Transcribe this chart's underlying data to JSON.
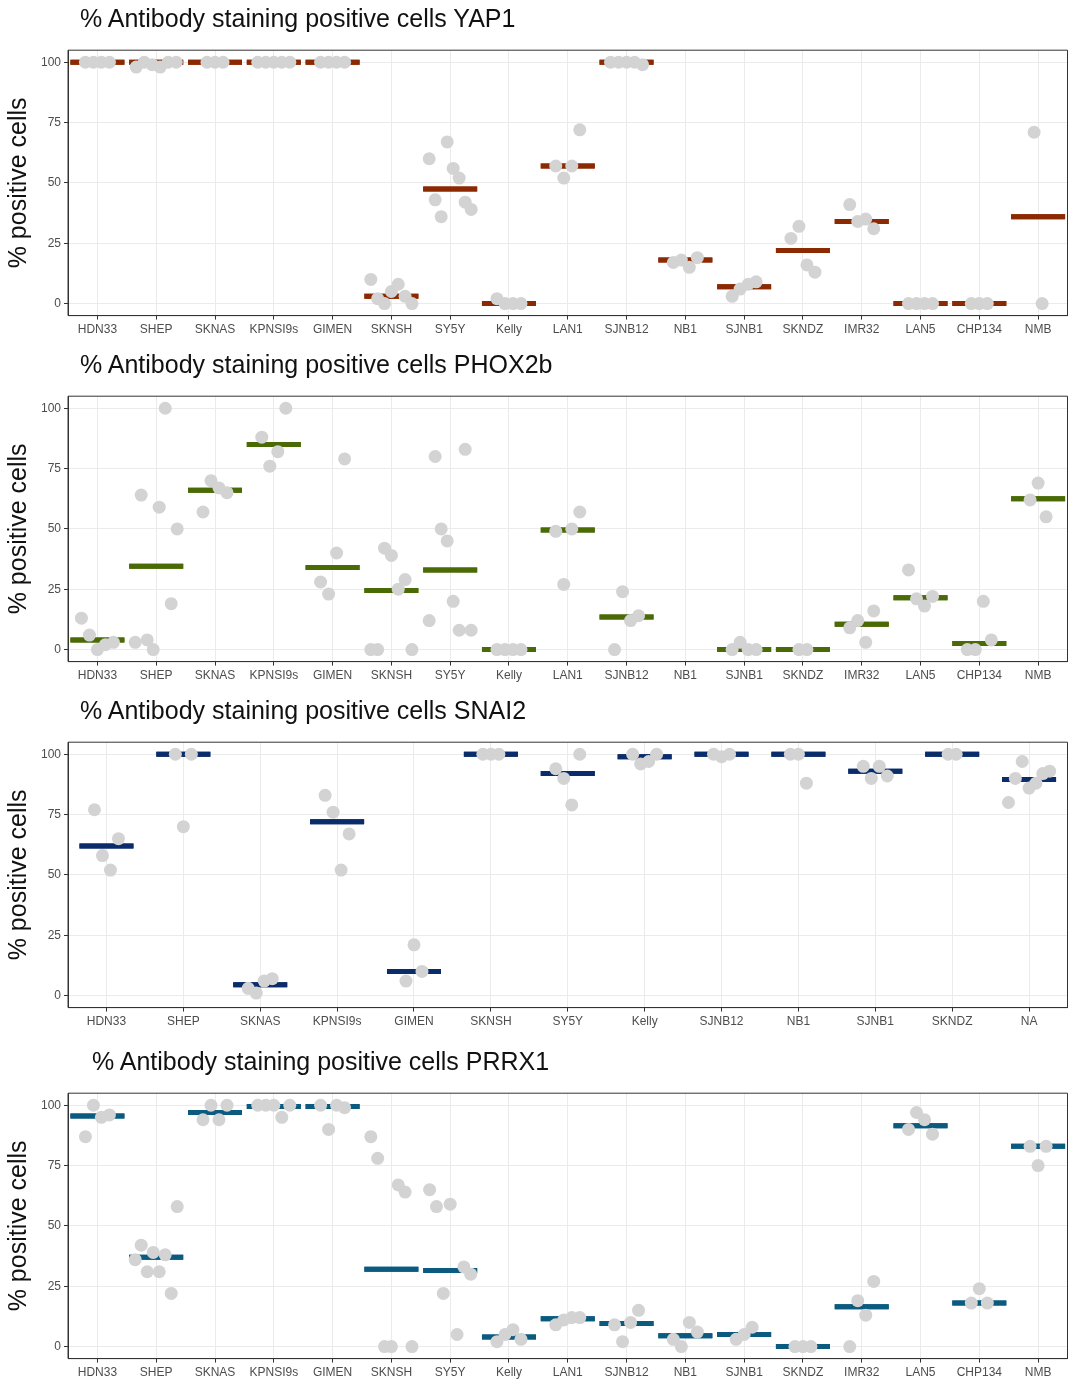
{
  "chart_data": [
    {
      "type": "scatter",
      "title": "% Antibody staining positive cells YAP1",
      "ylabel": "% positive cells",
      "categories": [
        "HDN33",
        "SHEP",
        "SKNAS",
        "KPNSI9s",
        "GIMEN",
        "SKNSH",
        "SY5Y",
        "Kelly",
        "LAN1",
        "SJNB12",
        "NB1",
        "SJNB1",
        "SKNDZ",
        "IMR32",
        "LAN5",
        "CHP134",
        "NMB"
      ],
      "ylim": [
        -5,
        105
      ],
      "yticks": [
        0,
        25,
        50,
        75,
        100
      ],
      "grid": true,
      "legend": false,
      "series": [
        {
          "marker": "circle",
          "color": "#d3d3d3",
          "x": [
            "HDN33",
            "HDN33",
            "HDN33",
            "HDN33",
            "SHEP",
            "SHEP",
            "SHEP",
            "SHEP",
            "SHEP",
            "SHEP",
            "SKNAS",
            "SKNAS",
            "SKNAS",
            "KPNSI9s",
            "KPNSI9s",
            "KPNSI9s",
            "KPNSI9s",
            "KPNSI9s",
            "GIMEN",
            "GIMEN",
            "GIMEN",
            "GIMEN",
            "SKNSH",
            "SKNSH",
            "SKNSH",
            "SKNSH",
            "SKNSH",
            "SKNSH",
            "SKNSH",
            "SY5Y",
            "SY5Y",
            "SY5Y",
            "SY5Y",
            "SY5Y",
            "SY5Y",
            "SY5Y",
            "SY5Y",
            "Kelly",
            "Kelly",
            "Kelly",
            "Kelly",
            "LAN1",
            "LAN1",
            "LAN1",
            "LAN1",
            "SJNB12",
            "SJNB12",
            "SJNB12",
            "SJNB12",
            "SJNB12",
            "NB1",
            "NB1",
            "NB1",
            "NB1",
            "SJNB1",
            "SJNB1",
            "SJNB1",
            "SJNB1",
            "SKNDZ",
            "SKNDZ",
            "SKNDZ",
            "SKNDZ",
            "IMR32",
            "IMR32",
            "IMR32",
            "IMR32",
            "LAN5",
            "LAN5",
            "LAN5",
            "LAN5",
            "CHP134",
            "CHP134",
            "CHP134",
            "NMB",
            "NMB"
          ],
          "values": [
            100,
            100,
            100,
            100,
            98,
            100,
            99,
            98,
            100,
            100,
            100,
            100,
            100,
            100,
            100,
            100,
            100,
            100,
            100,
            100,
            100,
            100,
            10,
            2,
            0,
            5,
            8,
            3,
            0,
            60,
            43,
            36,
            67,
            56,
            52,
            42,
            39,
            2,
            0,
            0,
            0,
            57,
            52,
            57,
            72,
            100,
            100,
            100,
            100,
            99,
            17,
            18,
            15,
            19,
            3,
            6,
            8,
            9,
            27,
            32,
            16,
            13,
            41,
            34,
            35,
            31,
            0,
            0,
            0,
            0,
            0,
            0,
            0,
            71,
            0
          ]
        },
        {
          "type": "box",
          "color": "#8b2a02",
          "boxes": [
            {
              "low": 100,
              "q1": 100,
              "median": 100,
              "q3": 100,
              "high": 100
            },
            {
              "low": 100,
              "q1": 100,
              "median": 100,
              "q3": 100,
              "high": 100
            },
            {
              "low": 100,
              "q1": 100,
              "median": 100,
              "q3": 100,
              "high": 100
            },
            {
              "low": 100,
              "q1": 100,
              "median": 100,
              "q3": 100,
              "high": 100
            },
            {
              "low": 100,
              "q1": 100,
              "median": 100,
              "q3": 100,
              "high": 100
            },
            {
              "low": 3,
              "q1": 3,
              "median": 3,
              "q3": 3,
              "high": 3
            },
            {
              "low": 47.5,
              "q1": 47.5,
              "median": 47.5,
              "q3": 47.5,
              "high": 47.5
            },
            {
              "low": 0,
              "q1": 0,
              "median": 0,
              "q3": 0,
              "high": 0
            },
            {
              "low": 57,
              "q1": 57,
              "median": 57,
              "q3": 57,
              "high": 57
            },
            {
              "low": 100,
              "q1": 100,
              "median": 100,
              "q3": 100,
              "high": 100
            },
            {
              "low": 18,
              "q1": 18,
              "median": 18,
              "q3": 18,
              "high": 18
            },
            {
              "low": 7,
              "q1": 7,
              "median": 7,
              "q3": 7,
              "high": 7
            },
            {
              "low": 22,
              "q1": 22,
              "median": 22,
              "q3": 22,
              "high": 22
            },
            {
              "low": 34,
              "q1": 34,
              "median": 34,
              "q3": 34,
              "high": 34
            },
            {
              "low": 0,
              "q1": 0,
              "median": 0,
              "q3": 0,
              "high": 0
            },
            {
              "low": 0,
              "q1": 0,
              "median": 0,
              "q3": 0,
              "high": 0
            },
            {
              "low": 36,
              "q1": 36,
              "median": 36,
              "q3": 36,
              "high": 36
            }
          ]
        }
      ]
    },
    {
      "type": "scatter",
      "title": "% Antibody staining positive cells PHOX2b",
      "ylabel": "% positive cells",
      "categories": [
        "HDN33",
        "SHEP",
        "SKNAS",
        "KPNSI9s",
        "GIMEN",
        "SKNSH",
        "SY5Y",
        "Kelly",
        "LAN1",
        "SJNB12",
        "NB1",
        "SJNB1",
        "SKNDZ",
        "IMR32",
        "LAN5",
        "CHP134",
        "NMB"
      ],
      "ylim": [
        -5,
        105
      ],
      "yticks": [
        0,
        25,
        50,
        75,
        100
      ],
      "grid": true,
      "legend": false,
      "series": [
        {
          "marker": "circle",
          "color": "#d3d3d3",
          "x": [
            "HDN33",
            "HDN33",
            "HDN33",
            "HDN33",
            "HDN33",
            "SHEP",
            "SHEP",
            "SHEP",
            "SHEP",
            "SHEP",
            "SHEP",
            "SHEP",
            "SHEP",
            "SKNAS",
            "SKNAS",
            "SKNAS",
            "SKNAS",
            "KPNSI9s",
            "KPNSI9s",
            "KPNSI9s",
            "KPNSI9s",
            "GIMEN",
            "GIMEN",
            "GIMEN",
            "GIMEN",
            "SKNSH",
            "SKNSH",
            "SKNSH",
            "SKNSH",
            "SKNSH",
            "SKNSH",
            "SKNSH",
            "SY5Y",
            "SY5Y",
            "SY5Y",
            "SY5Y",
            "SY5Y",
            "SY5Y",
            "SY5Y",
            "SY5Y",
            "Kelly",
            "Kelly",
            "Kelly",
            "Kelly",
            "LAN1",
            "LAN1",
            "LAN1",
            "LAN1",
            "SJNB12",
            "SJNB12",
            "SJNB12",
            "SJNB12",
            "SJNB1",
            "SJNB1",
            "SJNB1",
            "SJNB1",
            "SKNDZ",
            "SKNDZ",
            "IMR32",
            "IMR32",
            "IMR32",
            "IMR32",
            "LAN5",
            "LAN5",
            "LAN5",
            "LAN5",
            "CHP134",
            "CHP134",
            "CHP134",
            "CHP134",
            "NMB",
            "NMB",
            "NMB"
          ],
          "values": [
            13,
            6,
            0,
            2,
            3,
            3,
            64,
            4,
            0,
            59,
            100,
            19,
            50,
            57,
            70,
            67,
            65,
            88,
            76,
            82,
            100,
            28,
            23,
            40,
            79,
            0,
            0,
            42,
            39,
            25,
            29,
            0,
            12,
            80,
            50,
            45,
            20,
            8,
            83,
            8,
            0,
            0,
            0,
            0,
            49,
            27,
            50,
            57,
            0,
            24,
            12,
            14,
            0,
            3,
            0,
            0,
            0,
            0,
            9,
            12,
            3,
            16,
            33,
            21,
            18,
            22,
            0,
            0,
            20,
            4,
            62,
            69,
            55
          ]
        },
        {
          "type": "box",
          "color": "#4a6a06",
          "boxes": [
            {
              "low": 4,
              "q1": 4,
              "median": 4,
              "q3": 4,
              "high": 4
            },
            {
              "low": 34.5,
              "q1": 34.5,
              "median": 34.5,
              "q3": 34.5,
              "high": 34.5
            },
            {
              "low": 66,
              "q1": 66,
              "median": 66,
              "q3": 66,
              "high": 66
            },
            {
              "low": 85,
              "q1": 85,
              "median": 85,
              "q3": 85,
              "high": 85
            },
            {
              "low": 34,
              "q1": 34,
              "median": 34,
              "q3": 34,
              "high": 34
            },
            {
              "low": 24.5,
              "q1": 24.5,
              "median": 24.5,
              "q3": 24.5,
              "high": 24.5
            },
            {
              "low": 33,
              "q1": 33,
              "median": 33,
              "q3": 33,
              "high": 33
            },
            {
              "low": 0,
              "q1": 0,
              "median": 0,
              "q3": 0,
              "high": 0
            },
            {
              "low": 49.5,
              "q1": 49.5,
              "median": 49.5,
              "q3": 49.5,
              "high": 49.5
            },
            {
              "low": 13.5,
              "q1": 13.5,
              "median": 13.5,
              "q3": 13.5,
              "high": 13.5
            },
            null,
            {
              "low": 0,
              "q1": 0,
              "median": 0,
              "q3": 0,
              "high": 0
            },
            {
              "low": 0,
              "q1": 0,
              "median": 0,
              "q3": 0,
              "high": 0
            },
            {
              "low": 10.5,
              "q1": 10.5,
              "median": 10.5,
              "q3": 10.5,
              "high": 10.5
            },
            {
              "low": 21.5,
              "q1": 21.5,
              "median": 21.5,
              "q3": 21.5,
              "high": 21.5
            },
            {
              "low": 2.5,
              "q1": 2.5,
              "median": 2.5,
              "q3": 2.5,
              "high": 2.5
            },
            {
              "low": 62.5,
              "q1": 62.5,
              "median": 62.5,
              "q3": 62.5,
              "high": 62.5
            }
          ]
        }
      ]
    },
    {
      "type": "scatter",
      "title": "% Antibody staining positive cells SNAI2",
      "ylabel": "% positive cells",
      "categories": [
        "HDN33",
        "SHEP",
        "SKNAS",
        "KPNSI9s",
        "GIMEN",
        "SKNSH",
        "SY5Y",
        "Kelly",
        "SJNB12",
        "NB1",
        "SJNB1",
        "SKNDZ",
        "NA"
      ],
      "ylim": [
        -5,
        105
      ],
      "yticks": [
        0,
        25,
        50,
        75,
        100
      ],
      "grid": true,
      "legend": false,
      "series": [
        {
          "marker": "circle",
          "color": "#d3d3d3",
          "x": [
            "HDN33",
            "HDN33",
            "HDN33",
            "HDN33",
            "SHEP",
            "SHEP",
            "SHEP",
            "SKNAS",
            "SKNAS",
            "SKNAS",
            "SKNAS",
            "KPNSI9s",
            "KPNSI9s",
            "KPNSI9s",
            "KPNSI9s",
            "GIMEN",
            "GIMEN",
            "GIMEN",
            "SKNSH",
            "SKNSH",
            "SKNSH",
            "SY5Y",
            "SY5Y",
            "SY5Y",
            "SY5Y",
            "Kelly",
            "Kelly",
            "Kelly",
            "Kelly",
            "SJNB12",
            "SJNB12",
            "SJNB12",
            "NB1",
            "NB1",
            "NB1",
            "SJNB1",
            "SJNB1",
            "SJNB1",
            "SJNB1",
            "SKNDZ",
            "SKNDZ",
            "NA",
            "NA",
            "NA",
            "NA",
            "NA",
            "NA",
            "NA"
          ],
          "values": [
            77,
            58,
            52,
            65,
            100,
            70,
            100,
            3,
            1,
            6,
            7,
            83,
            76,
            52,
            67,
            6,
            21,
            10,
            100,
            100,
            100,
            94,
            90,
            79,
            100,
            100,
            96,
            97,
            100,
            100,
            99,
            100,
            100,
            100,
            88,
            95,
            90,
            95,
            91,
            100,
            100,
            80,
            90,
            97,
            86,
            88,
            92,
            93
          ]
        },
        {
          "type": "box",
          "color": "#0b2c6b",
          "boxes": [
            {
              "low": 62,
              "q1": 62,
              "median": 62,
              "q3": 62,
              "high": 62
            },
            {
              "low": 100,
              "q1": 100,
              "median": 100,
              "q3": 100,
              "high": 100
            },
            {
              "low": 4.5,
              "q1": 4.5,
              "median": 4.5,
              "q3": 4.5,
              "high": 4.5
            },
            {
              "low": 72,
              "q1": 72,
              "median": 72,
              "q3": 72,
              "high": 72
            },
            {
              "low": 10,
              "q1": 10,
              "median": 10,
              "q3": 10,
              "high": 10
            },
            {
              "low": 100,
              "q1": 100,
              "median": 100,
              "q3": 100,
              "high": 100
            },
            {
              "low": 92,
              "q1": 92,
              "median": 92,
              "q3": 92,
              "high": 92
            },
            {
              "low": 99,
              "q1": 99,
              "median": 99,
              "q3": 99,
              "high": 99
            },
            {
              "low": 100,
              "q1": 100,
              "median": 100,
              "q3": 100,
              "high": 100
            },
            {
              "low": 100,
              "q1": 100,
              "median": 100,
              "q3": 100,
              "high": 100
            },
            {
              "low": 93,
              "q1": 93,
              "median": 93,
              "q3": 93,
              "high": 93
            },
            {
              "low": 100,
              "q1": 100,
              "median": 100,
              "q3": 100,
              "high": 100
            },
            {
              "low": 89.5,
              "q1": 89.5,
              "median": 89.5,
              "q3": 89.5,
              "high": 89.5
            }
          ]
        }
      ]
    },
    {
      "type": "scatter",
      "title": "% Antibody staining positive cells PRRX1",
      "ylabel": "% positive cells",
      "categories": [
        "HDN33",
        "SHEP",
        "SKNAS",
        "KPNSI9s",
        "GIMEN",
        "SKNSH",
        "SY5Y",
        "Kelly",
        "LAN1",
        "SJNB12",
        "NB1",
        "SJNB1",
        "SKNDZ",
        "IMR32",
        "LAN5",
        "CHP134",
        "NMB"
      ],
      "ylim": [
        -5,
        105
      ],
      "yticks": [
        0,
        25,
        50,
        75,
        100
      ],
      "grid": true,
      "legend": false,
      "series": [
        {
          "marker": "circle",
          "color": "#d3d3d3",
          "x": [
            "HDN33",
            "HDN33",
            "HDN33",
            "HDN33",
            "SHEP",
            "SHEP",
            "SHEP",
            "SHEP",
            "SHEP",
            "SHEP",
            "SHEP",
            "SHEP",
            "SKNAS",
            "SKNAS",
            "SKNAS",
            "SKNAS",
            "KPNSI9s",
            "KPNSI9s",
            "KPNSI9s",
            "KPNSI9s",
            "KPNSI9s",
            "GIMEN",
            "GIMEN",
            "GIMEN",
            "GIMEN",
            "SKNSH",
            "SKNSH",
            "SKNSH",
            "SKNSH",
            "SKNSH",
            "SKNSH",
            "SKNSH",
            "SY5Y",
            "SY5Y",
            "SY5Y",
            "SY5Y",
            "SY5Y",
            "SY5Y",
            "SY5Y",
            "Kelly",
            "Kelly",
            "Kelly",
            "Kelly",
            "LAN1",
            "LAN1",
            "LAN1",
            "LAN1",
            "SJNB12",
            "SJNB12",
            "SJNB12",
            "SJNB12",
            "NB1",
            "NB1",
            "NB1",
            "NB1",
            "SJNB1",
            "SJNB1",
            "SJNB1",
            "SKNDZ",
            "SKNDZ",
            "SKNDZ",
            "IMR32",
            "IMR32",
            "IMR32",
            "IMR32",
            "LAN5",
            "LAN5",
            "LAN5",
            "LAN5",
            "CHP134",
            "CHP134",
            "CHP134",
            "NMB",
            "NMB",
            "NMB"
          ],
          "values": [
            87,
            100,
            95,
            96,
            36,
            42,
            31,
            39,
            31,
            38,
            22,
            58,
            94,
            100,
            94,
            100,
            100,
            100,
            100,
            95,
            100,
            100,
            90,
            100,
            99,
            87,
            78,
            0,
            0,
            67,
            64,
            0,
            65,
            58,
            22,
            59,
            5,
            33,
            30,
            2,
            5,
            7,
            3,
            9,
            11,
            12,
            12,
            9,
            2,
            10,
            15,
            3,
            0,
            10,
            6,
            3,
            5,
            8,
            0,
            0,
            0,
            0,
            19,
            13,
            27,
            90,
            97,
            94,
            88,
            18,
            24,
            18,
            83,
            75,
            83
          ]
        },
        {
          "type": "box",
          "color": "#0b5a80",
          "boxes": [
            {
              "low": 95.5,
              "q1": 95.5,
              "median": 95.5,
              "q3": 95.5,
              "high": 95.5
            },
            {
              "low": 37,
              "q1": 37,
              "median": 37,
              "q3": 37,
              "high": 37
            },
            {
              "low": 97,
              "q1": 97,
              "median": 97,
              "q3": 97,
              "high": 97
            },
            {
              "low": 99.5,
              "q1": 99.5,
              "median": 99.5,
              "q3": 99.5,
              "high": 99.5
            },
            {
              "low": 99.5,
              "q1": 99.5,
              "median": 99.5,
              "q3": 99.5,
              "high": 99.5
            },
            {
              "low": 32,
              "q1": 32,
              "median": 32,
              "q3": 32,
              "high": 32
            },
            {
              "low": 31.5,
              "q1": 31.5,
              "median": 31.5,
              "q3": 31.5,
              "high": 31.5
            },
            {
              "low": 4,
              "q1": 4,
              "median": 4,
              "q3": 4,
              "high": 4
            },
            {
              "low": 11.5,
              "q1": 11.5,
              "median": 11.5,
              "q3": 11.5,
              "high": 11.5
            },
            {
              "low": 9.5,
              "q1": 9.5,
              "median": 9.5,
              "q3": 9.5,
              "high": 9.5
            },
            {
              "low": 4.5,
              "q1": 4.5,
              "median": 4.5,
              "q3": 4.5,
              "high": 4.5
            },
            {
              "low": 5,
              "q1": 5,
              "median": 5,
              "q3": 5,
              "high": 5
            },
            {
              "low": 0,
              "q1": 0,
              "median": 0,
              "q3": 0,
              "high": 0
            },
            {
              "low": 16.5,
              "q1": 16.5,
              "median": 16.5,
              "q3": 16.5,
              "high": 16.5
            },
            {
              "low": 91.5,
              "q1": 91.5,
              "median": 91.5,
              "q3": 91.5,
              "high": 91.5
            },
            {
              "low": 18,
              "q1": 18,
              "median": 18,
              "q3": 18,
              "high": 18
            },
            {
              "low": 83,
              "q1": 83,
              "median": 83,
              "q3": 83,
              "high": 83
            }
          ]
        }
      ]
    }
  ]
}
